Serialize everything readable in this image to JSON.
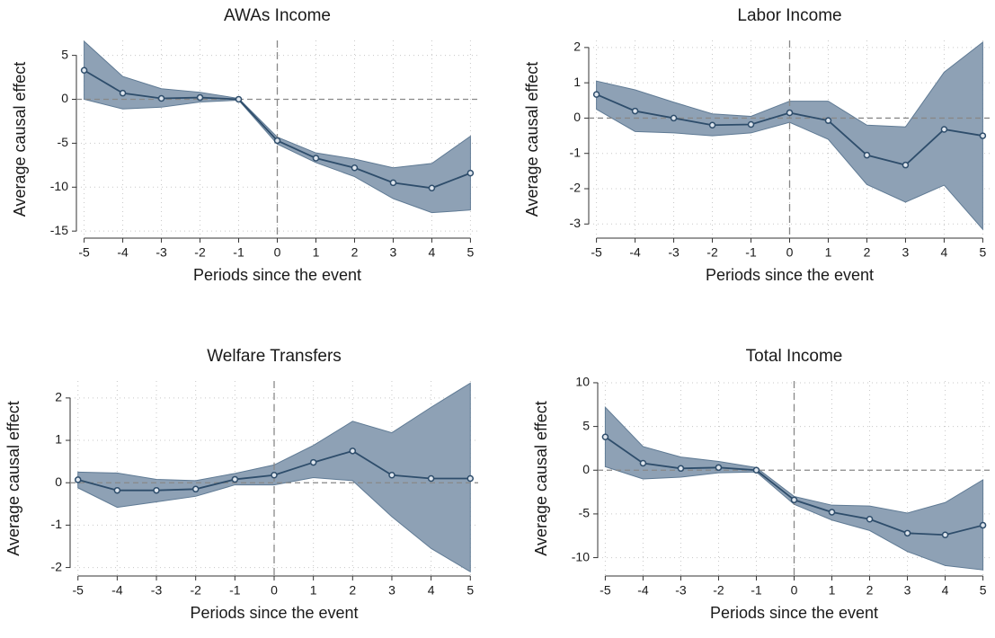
{
  "chart_data": [
    {
      "type": "line",
      "title": "AWAs Income",
      "xlabel": "Periods since the event",
      "ylabel": "Average causal effect",
      "x": [
        -5,
        -4,
        -3,
        -2,
        -1,
        0,
        1,
        2,
        3,
        4,
        5
      ],
      "values": [
        3.3,
        0.7,
        0.1,
        0.2,
        0,
        -4.7,
        -6.7,
        -7.8,
        -9.5,
        -10.1,
        -8.4
      ],
      "upper": [
        6.6,
        2.6,
        1.2,
        0.8,
        0.1,
        -4.3,
        -6.1,
        -6.8,
        -7.8,
        -7.3,
        -4.2
      ],
      "lower": [
        0,
        -1.1,
        -0.9,
        -0.3,
        -0.1,
        -5.1,
        -7.2,
        -8.8,
        -11.3,
        -12.9,
        -12.6
      ],
      "xlim": [
        -5.2,
        5.2
      ],
      "ylim": [
        -15.8,
        6.7
      ],
      "xticks": [
        -5,
        -4,
        -3,
        -2,
        -1,
        0,
        1,
        2,
        3,
        4,
        5
      ],
      "yticks": [
        5,
        0,
        -5,
        -10,
        -15
      ],
      "grid": true,
      "hline": 0,
      "vline": 0,
      "color": "#2e4d6b",
      "band_color": "#8ea1b5"
    },
    {
      "type": "line",
      "title": "Labor Income",
      "xlabel": "Periods since the event",
      "ylabel": "Average causal effect",
      "x": [
        -5,
        -4,
        -3,
        -2,
        -1,
        0,
        1,
        2,
        3,
        4,
        5
      ],
      "values": [
        0.67,
        0.2,
        0,
        -0.2,
        -0.18,
        0.15,
        -0.07,
        -1.05,
        -1.33,
        -0.32,
        -0.5
      ],
      "upper": [
        1.05,
        0.8,
        0.45,
        0.12,
        0.05,
        0.48,
        0.48,
        -0.2,
        -0.25,
        1.3,
        2.15
      ],
      "lower": [
        0.25,
        -0.38,
        -0.42,
        -0.5,
        -0.42,
        -0.12,
        -0.6,
        -1.88,
        -2.38,
        -1.9,
        -3.15
      ],
      "xlim": [
        -5.2,
        5.2
      ],
      "ylim": [
        -3.4,
        2.2
      ],
      "xticks": [
        -5,
        -4,
        -3,
        -2,
        -1,
        0,
        1,
        2,
        3,
        4,
        5
      ],
      "yticks": [
        2,
        1,
        0,
        -1,
        -2,
        -3
      ],
      "grid": true,
      "hline": 0,
      "vline": 0,
      "color": "#2e4d6b",
      "band_color": "#8ea1b5"
    },
    {
      "type": "line",
      "title": "Welfare Transfers",
      "xlabel": "Periods since the event",
      "ylabel": "Average causal effect",
      "x": [
        -5,
        -4,
        -3,
        -2,
        -1,
        0,
        1,
        2,
        3,
        4,
        5
      ],
      "values": [
        0.07,
        -0.18,
        -0.18,
        -0.15,
        0.08,
        0.18,
        0.48,
        0.75,
        0.18,
        0.1,
        0.1
      ],
      "upper": [
        0.25,
        0.23,
        0.08,
        0.05,
        0.22,
        0.42,
        0.88,
        1.45,
        1.18,
        1.78,
        2.35
      ],
      "lower": [
        -0.12,
        -0.58,
        -0.45,
        -0.32,
        -0.05,
        -0.05,
        0.12,
        0.05,
        -0.8,
        -1.55,
        -2.1
      ],
      "xlim": [
        -5.2,
        5.2
      ],
      "ylim": [
        -2.2,
        2.4
      ],
      "xticks": [
        -5,
        -4,
        -3,
        -2,
        -1,
        0,
        1,
        2,
        3,
        4,
        5
      ],
      "yticks": [
        2,
        1,
        0,
        -1,
        -2
      ],
      "grid": true,
      "hline": 0,
      "vline": 0,
      "color": "#2e4d6b",
      "band_color": "#8ea1b5"
    },
    {
      "type": "line",
      "title": "Total Income",
      "xlabel": "Periods since the event",
      "ylabel": "Average causal effect",
      "x": [
        -5,
        -4,
        -3,
        -2,
        -1,
        0,
        1,
        2,
        3,
        4,
        5
      ],
      "values": [
        3.8,
        0.8,
        0.2,
        0.3,
        0,
        -3.4,
        -4.8,
        -5.6,
        -7.2,
        -7.4,
        -6.3
      ],
      "upper": [
        7.2,
        2.7,
        1.5,
        1.0,
        0.3,
        -3.0,
        -4.0,
        -4.1,
        -4.9,
        -3.7,
        -1.1
      ],
      "lower": [
        0.4,
        -1.0,
        -0.8,
        -0.3,
        -0.2,
        -3.9,
        -5.7,
        -6.9,
        -9.3,
        -10.9,
        -11.4
      ],
      "xlim": [
        -5.2,
        5.2
      ],
      "ylim": [
        -12.1,
        10.2
      ],
      "xticks": [
        -5,
        -4,
        -3,
        -2,
        -1,
        0,
        1,
        2,
        3,
        4,
        5
      ],
      "yticks": [
        10,
        5,
        0,
        -5,
        -10
      ],
      "grid": true,
      "hline": 0,
      "vline": 0,
      "color": "#2e4d6b",
      "band_color": "#8ea1b5"
    }
  ]
}
